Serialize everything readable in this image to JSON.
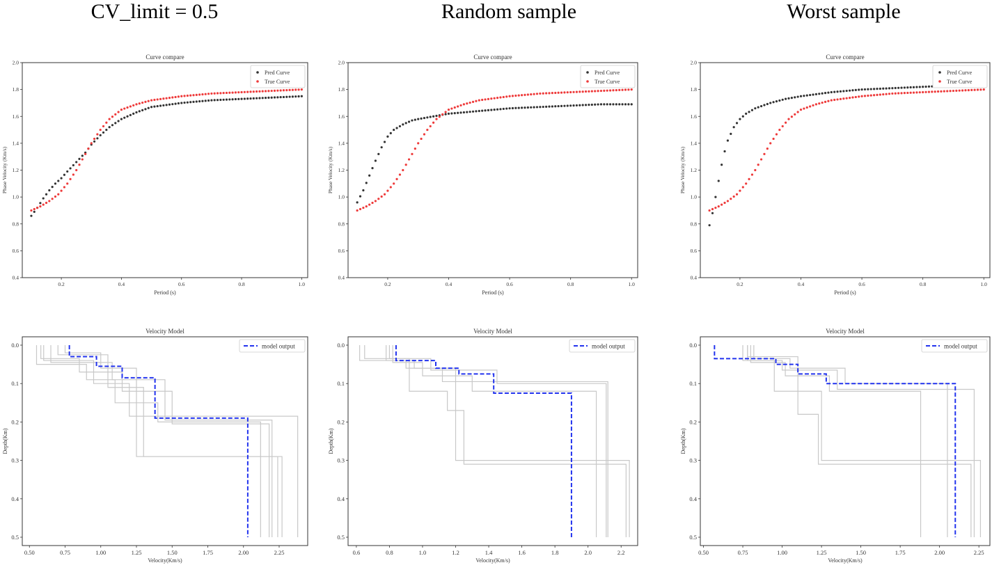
{
  "columns": [
    {
      "title": "CV_limit = 0.5"
    },
    {
      "title": "Random sample"
    },
    {
      "title": "Worst sample"
    }
  ],
  "chart_data": [
    {
      "type": "scatter",
      "title": "Curve compare",
      "xlabel": "Period (s)",
      "ylabel": "Phase Velocity (Km/s)",
      "xlim": [
        0.07,
        1.02
      ],
      "ylim": [
        0.4,
        2.0
      ],
      "xticks": [
        0.2,
        0.4,
        0.6,
        0.8,
        1.0
      ],
      "yticks": [
        0.4,
        0.6,
        0.8,
        1.0,
        1.2,
        1.4,
        1.6,
        1.8,
        2.0
      ],
      "legend": "top-right",
      "series": [
        {
          "name": "Pred Curve",
          "color": "#333333",
          "x": [
            0.1,
            0.12,
            0.14,
            0.16,
            0.18,
            0.2,
            0.22,
            0.25,
            0.28,
            0.3,
            0.33,
            0.36,
            0.4,
            0.45,
            0.5,
            0.6,
            0.7,
            0.8,
            0.9,
            1.0
          ],
          "y": [
            0.86,
            0.92,
            0.99,
            1.05,
            1.1,
            1.14,
            1.19,
            1.26,
            1.33,
            1.39,
            1.46,
            1.52,
            1.58,
            1.63,
            1.67,
            1.7,
            1.72,
            1.73,
            1.74,
            1.75
          ]
        },
        {
          "name": "True Curve",
          "color": "#ee3b3b",
          "x": [
            0.1,
            0.13,
            0.16,
            0.19,
            0.22,
            0.25,
            0.28,
            0.3,
            0.33,
            0.36,
            0.4,
            0.45,
            0.5,
            0.6,
            0.7,
            0.8,
            0.9,
            1.0
          ],
          "y": [
            0.9,
            0.93,
            0.97,
            1.02,
            1.1,
            1.2,
            1.32,
            1.4,
            1.5,
            1.58,
            1.65,
            1.69,
            1.72,
            1.75,
            1.77,
            1.78,
            1.79,
            1.8
          ]
        }
      ]
    },
    {
      "type": "scatter",
      "title": "Curve compare",
      "xlabel": "Period (s)",
      "ylabel": "Phase Velocity (Km/s)",
      "xlim": [
        0.07,
        1.02
      ],
      "ylim": [
        0.4,
        2.0
      ],
      "xticks": [
        0.2,
        0.4,
        0.6,
        0.8,
        1.0
      ],
      "yticks": [
        0.4,
        0.6,
        0.8,
        1.0,
        1.2,
        1.4,
        1.6,
        1.8,
        2.0
      ],
      "legend": "top-right",
      "series": [
        {
          "name": "Pred Curve",
          "color": "#333333",
          "x": [
            0.1,
            0.12,
            0.14,
            0.16,
            0.18,
            0.2,
            0.22,
            0.25,
            0.28,
            0.3,
            0.35,
            0.4,
            0.5,
            0.6,
            0.7,
            0.8,
            0.9,
            1.0
          ],
          "y": [
            0.96,
            1.05,
            1.16,
            1.27,
            1.37,
            1.45,
            1.5,
            1.54,
            1.57,
            1.58,
            1.6,
            1.62,
            1.64,
            1.66,
            1.67,
            1.68,
            1.69,
            1.69
          ]
        },
        {
          "name": "True Curve",
          "color": "#ee3b3b",
          "x": [
            0.1,
            0.13,
            0.16,
            0.19,
            0.22,
            0.25,
            0.28,
            0.3,
            0.33,
            0.36,
            0.4,
            0.45,
            0.5,
            0.6,
            0.7,
            0.8,
            0.9,
            1.0
          ],
          "y": [
            0.9,
            0.93,
            0.97,
            1.02,
            1.1,
            1.2,
            1.32,
            1.4,
            1.5,
            1.58,
            1.65,
            1.69,
            1.72,
            1.75,
            1.77,
            1.78,
            1.79,
            1.8
          ]
        }
      ]
    },
    {
      "type": "scatter",
      "title": "Curve compare",
      "xlabel": "Period (s)",
      "ylabel": "Phase Velocity (Km/s)",
      "xlim": [
        0.07,
        1.02
      ],
      "ylim": [
        0.4,
        2.0
      ],
      "xticks": [
        0.2,
        0.4,
        0.6,
        0.8,
        1.0
      ],
      "yticks": [
        0.4,
        0.6,
        0.8,
        1.0,
        1.2,
        1.4,
        1.6,
        1.8,
        2.0
      ],
      "legend": "top-right",
      "series": [
        {
          "name": "Pred Curve",
          "color": "#333333",
          "x": [
            0.1,
            0.11,
            0.12,
            0.13,
            0.14,
            0.15,
            0.16,
            0.18,
            0.2,
            0.22,
            0.25,
            0.3,
            0.35,
            0.4,
            0.5,
            0.6,
            0.7,
            0.8,
            0.9,
            1.0
          ],
          "y": [
            0.79,
            0.88,
            1.0,
            1.12,
            1.24,
            1.34,
            1.42,
            1.52,
            1.58,
            1.62,
            1.66,
            1.7,
            1.73,
            1.75,
            1.78,
            1.8,
            1.81,
            1.82,
            1.83,
            1.84
          ]
        },
        {
          "name": "True Curve",
          "color": "#ee3b3b",
          "x": [
            0.1,
            0.13,
            0.16,
            0.19,
            0.22,
            0.25,
            0.28,
            0.3,
            0.33,
            0.36,
            0.4,
            0.45,
            0.5,
            0.6,
            0.7,
            0.8,
            0.9,
            1.0
          ],
          "y": [
            0.9,
            0.93,
            0.97,
            1.02,
            1.1,
            1.2,
            1.32,
            1.4,
            1.5,
            1.58,
            1.65,
            1.69,
            1.72,
            1.75,
            1.77,
            1.78,
            1.79,
            1.8
          ]
        }
      ]
    },
    {
      "type": "line",
      "title": "Velocity Model",
      "xlabel": "Velocity(Km/s)",
      "ylabel": "Depth(Km)",
      "xlim": [
        0.45,
        2.45
      ],
      "ylim": [
        0.0,
        0.5
      ],
      "y_inverted": true,
      "xticks": [
        0.5,
        0.75,
        1.0,
        1.25,
        1.5,
        1.75,
        2.0,
        2.25
      ],
      "xtick_labels": [
        "0.50",
        "0.75",
        "1.00",
        "1.25",
        "1.50",
        "1.75",
        "2.00",
        "2.25"
      ],
      "yticks": [
        0.0,
        0.1,
        0.2,
        0.3,
        0.4,
        0.5
      ],
      "legend": "top-right",
      "model_output": {
        "name": "model output",
        "color": "#2233ee",
        "v": [
          0.78,
          0.78,
          0.97,
          0.97,
          1.15,
          1.15,
          1.38,
          1.38,
          2.03,
          2.03
        ],
        "d": [
          0.0,
          0.03,
          0.03,
          0.055,
          0.055,
          0.085,
          0.085,
          0.19,
          0.19,
          0.5
        ]
      },
      "references": [
        {
          "v": [
            0.55,
            0.55,
            0.9,
            0.9,
            1.1,
            1.1,
            1.4,
            1.4,
            2.12,
            2.12
          ],
          "d": [
            0.0,
            0.05,
            0.05,
            0.09,
            0.09,
            0.15,
            0.15,
            0.2,
            0.2,
            0.5
          ]
        },
        {
          "v": [
            0.6,
            0.6,
            0.95,
            0.95,
            1.2,
            1.2,
            2.38,
            2.38
          ],
          "d": [
            0.0,
            0.04,
            0.04,
            0.1,
            0.1,
            0.185,
            0.185,
            0.5
          ]
        },
        {
          "v": [
            0.75,
            0.75,
            1.0,
            1.0,
            1.25,
            1.25,
            2.24,
            2.24
          ],
          "d": [
            0.0,
            0.02,
            0.02,
            0.06,
            0.06,
            0.29,
            0.29,
            0.5
          ]
        },
        {
          "v": [
            0.58,
            0.58,
            0.85,
            0.85,
            1.15,
            1.15,
            1.5,
            1.5,
            2.18,
            2.18
          ],
          "d": [
            0.0,
            0.035,
            0.035,
            0.07,
            0.07,
            0.12,
            0.12,
            0.205,
            0.205,
            0.5
          ]
        },
        {
          "v": [
            0.7,
            0.7,
            1.05,
            1.05,
            1.3,
            1.3,
            2.27,
            2.27
          ],
          "d": [
            0.0,
            0.025,
            0.025,
            0.11,
            0.11,
            0.29,
            0.29,
            0.5
          ]
        },
        {
          "v": [
            0.65,
            0.65,
            1.08,
            1.08,
            1.45,
            1.45,
            2.2,
            2.2
          ],
          "d": [
            0.0,
            0.045,
            0.045,
            0.09,
            0.09,
            0.195,
            0.195,
            0.5
          ]
        }
      ]
    },
    {
      "type": "line",
      "title": "Velocity Model",
      "xlabel": "Velocity(Km/s)",
      "ylabel": "Depth(Km)",
      "xlim": [
        0.55,
        2.3
      ],
      "ylim": [
        0.0,
        0.5
      ],
      "y_inverted": true,
      "xticks": [
        0.6,
        0.8,
        1.0,
        1.2,
        1.4,
        1.6,
        1.8,
        2.0,
        2.2
      ],
      "xtick_labels": [
        "0.6",
        "0.8",
        "1.0",
        "1.2",
        "1.4",
        "1.6",
        "1.8",
        "2.0",
        "2.2"
      ],
      "yticks": [
        0.0,
        0.1,
        0.2,
        0.3,
        0.4,
        0.5
      ],
      "legend": "top-right",
      "model_output": {
        "name": "model output",
        "color": "#2233ee",
        "v": [
          0.84,
          0.84,
          1.08,
          1.08,
          1.22,
          1.22,
          1.43,
          1.43,
          1.9,
          1.9
        ],
        "d": [
          0.0,
          0.04,
          0.04,
          0.06,
          0.06,
          0.075,
          0.075,
          0.125,
          0.125,
          0.5
        ]
      },
      "references": [
        {
          "v": [
            0.62,
            0.62,
            0.95,
            0.95,
            1.12,
            1.12,
            2.12,
            2.12
          ],
          "d": [
            0.0,
            0.04,
            0.04,
            0.06,
            0.06,
            0.095,
            0.095,
            0.5
          ]
        },
        {
          "v": [
            0.65,
            0.65,
            0.92,
            0.92,
            1.15,
            1.15,
            1.25,
            1.25,
            2.23,
            2.23
          ],
          "d": [
            0.0,
            0.035,
            0.035,
            0.12,
            0.12,
            0.17,
            0.17,
            0.31,
            0.31,
            0.5
          ]
        },
        {
          "v": [
            0.82,
            0.82,
            1.0,
            1.0,
            1.3,
            1.3,
            2.05,
            2.05
          ],
          "d": [
            0.0,
            0.045,
            0.045,
            0.08,
            0.08,
            0.12,
            0.12,
            0.5
          ]
        },
        {
          "v": [
            0.8,
            0.8,
            1.05,
            1.05,
            1.45,
            1.45,
            2.11,
            2.11
          ],
          "d": [
            0.0,
            0.035,
            0.035,
            0.065,
            0.065,
            0.1,
            0.1,
            0.5
          ]
        },
        {
          "v": [
            0.78,
            0.78,
            0.9,
            0.9,
            1.2,
            1.2,
            2.25,
            2.25
          ],
          "d": [
            0.0,
            0.04,
            0.04,
            0.06,
            0.06,
            0.3,
            0.3,
            0.5
          ]
        }
      ]
    },
    {
      "type": "line",
      "title": "Velocity Model",
      "xlabel": "Velocity(Km/s)",
      "ylabel": "Depth(Km)",
      "xlim": [
        0.48,
        2.32
      ],
      "ylim": [
        0.0,
        0.5
      ],
      "y_inverted": true,
      "xticks": [
        0.5,
        0.75,
        1.0,
        1.25,
        1.5,
        1.75,
        2.0,
        2.25
      ],
      "xtick_labels": [
        "0.50",
        "0.75",
        "1.00",
        "1.25",
        "1.50",
        "1.75",
        "2.00",
        "2.25"
      ],
      "yticks": [
        0.0,
        0.1,
        0.2,
        0.3,
        0.4,
        0.5
      ],
      "legend": "top-right",
      "model_output": {
        "name": "model output",
        "color": "#2233ee",
        "v": [
          0.57,
          0.57,
          0.96,
          0.96,
          1.1,
          1.1,
          1.28,
          1.28,
          2.1,
          2.1
        ],
        "d": [
          0.0,
          0.035,
          0.035,
          0.05,
          0.05,
          0.075,
          0.075,
          0.1,
          0.1,
          0.5
        ]
      },
      "references": [
        {
          "v": [
            0.78,
            0.78,
            0.95,
            0.95,
            1.1,
            1.1,
            1.23,
            1.23,
            2.2,
            2.2
          ],
          "d": [
            0.0,
            0.04,
            0.04,
            0.12,
            0.12,
            0.18,
            0.18,
            0.31,
            0.31,
            0.5
          ]
        },
        {
          "v": [
            0.8,
            0.8,
            1.02,
            1.02,
            1.3,
            1.3,
            1.88,
            1.88
          ],
          "d": [
            0.0,
            0.045,
            0.045,
            0.08,
            0.08,
            0.12,
            0.12,
            0.5
          ]
        },
        {
          "v": [
            0.82,
            0.82,
            1.05,
            1.05,
            1.4,
            1.4,
            2.05,
            2.05
          ],
          "d": [
            0.0,
            0.035,
            0.035,
            0.06,
            0.06,
            0.1,
            0.1,
            0.5
          ]
        },
        {
          "v": [
            0.75,
            0.75,
            1.0,
            1.0,
            1.35,
            1.35,
            2.22,
            2.22
          ],
          "d": [
            0.0,
            0.04,
            0.04,
            0.065,
            0.065,
            0.115,
            0.115,
            0.5
          ]
        },
        {
          "v": [
            0.78,
            0.78,
            1.1,
            1.1,
            1.25,
            1.25,
            2.26,
            2.26
          ],
          "d": [
            0.0,
            0.03,
            0.03,
            0.12,
            0.12,
            0.3,
            0.3,
            0.5
          ]
        }
      ]
    }
  ]
}
